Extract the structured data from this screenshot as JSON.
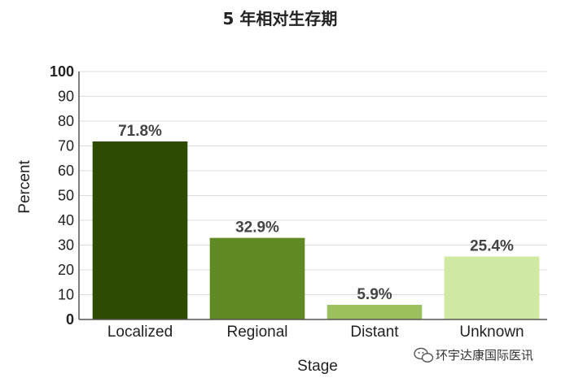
{
  "chart_data": {
    "type": "bar",
    "title": "5 年相对生存期",
    "xlabel": "Stage",
    "ylabel": "Percent",
    "categories": [
      "Localized",
      "Regional",
      "Distant",
      "Unknown"
    ],
    "values": [
      71.8,
      32.9,
      5.9,
      25.4
    ],
    "data_labels": [
      "71.8%",
      "32.9%",
      "5.9%",
      "25.4%"
    ],
    "colors": [
      "#2e4a03",
      "#5f8a23",
      "#9cc05e",
      "#cfe8a3"
    ],
    "ylim": [
      0,
      100
    ],
    "yticks": [
      "0",
      "10",
      "20",
      "30",
      "40",
      "50",
      "60",
      "70",
      "80",
      "90",
      "100"
    ],
    "grid": true,
    "legend": "none"
  },
  "watermark": {
    "text": "环宇达康国际医讯",
    "icon": "wechat-icon"
  }
}
